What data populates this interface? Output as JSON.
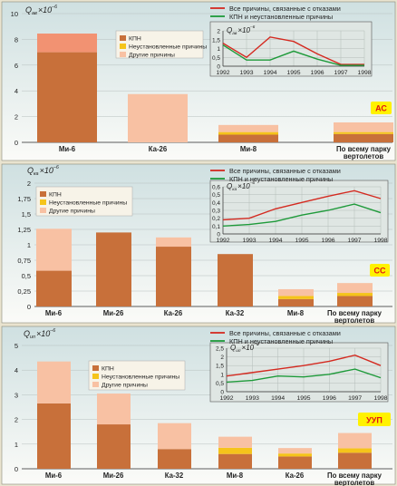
{
  "chart_data": [
    {
      "type": "bar",
      "stacked": true,
      "y_label": {
        "main": "Q",
        "sub": "ав",
        "mult": "×10",
        "exp": "–6"
      },
      "ylim": [
        0,
        10
      ],
      "yticks": [
        0,
        2,
        4,
        6,
        8,
        10
      ],
      "ytick_labels": [
        "0",
        "2",
        "4",
        "6",
        "8",
        "10"
      ],
      "categories": [
        {
          "label": [
            "Ми-6"
          ],
          "segments": [
            7.0,
            0,
            1.45
          ]
        },
        {
          "label": [
            "Ка-26"
          ],
          "segments": [
            0,
            0,
            3.75
          ]
        },
        {
          "label": [
            "Ми-8"
          ],
          "segments": [
            0.6,
            0.2,
            0.55
          ]
        },
        {
          "label": [
            "По всему парку",
            "вертолетов"
          ],
          "segments": [
            0.65,
            0.15,
            0.75
          ]
        }
      ],
      "segment_names": [
        "КПН",
        "Неустановленные причины",
        "Другие причины"
      ],
      "badge": "АС",
      "inset": {
        "y_label": {
          "main": "Q",
          "sub": "ав",
          "mult": "×10",
          "exp": "–6"
        },
        "ylim": [
          0,
          2
        ],
        "yticks": [
          0,
          0.5,
          1,
          1.5,
          2
        ],
        "ytick_labels": [
          "0",
          "0,5",
          "1",
          "1,5",
          "2"
        ],
        "x": [
          "1992",
          "1993",
          "1994",
          "1995",
          "1996",
          "1997",
          "1998"
        ],
        "series": [
          {
            "name": "Все причины, связанные с отказами",
            "color": "#d42a20",
            "values": [
              1.3,
              0.5,
              1.65,
              1.4,
              0.7,
              0.1,
              0.1
            ]
          },
          {
            "name": "КПН и неустановленные причины",
            "color": "#1e9a3a",
            "values": [
              1.2,
              0.35,
              0.35,
              0.85,
              0.4,
              0.05,
              0.05
            ]
          }
        ]
      }
    },
    {
      "type": "bar",
      "stacked": true,
      "y_label": {
        "main": "Q",
        "sub": "ка",
        "mult": "×10",
        "exp": "–6"
      },
      "ylim": [
        0,
        2
      ],
      "yticks": [
        0,
        0.25,
        0.5,
        0.75,
        1,
        1.25,
        1.5,
        1.75,
        2
      ],
      "ytick_labels": [
        "0",
        "0,25",
        "0,5",
        "0,75",
        "1",
        "1,25",
        "1,5",
        "1,75",
        "2"
      ],
      "categories": [
        {
          "label": [
            "Ми-6"
          ],
          "segments": [
            0.58,
            0,
            0.68
          ]
        },
        {
          "label": [
            "Ми-26"
          ],
          "segments": [
            1.2,
            0,
            0
          ]
        },
        {
          "label": [
            "Ка-26"
          ],
          "segments": [
            0.97,
            0,
            0.15
          ]
        },
        {
          "label": [
            "Ка-32"
          ],
          "segments": [
            0.85,
            0,
            0
          ]
        },
        {
          "label": [
            "Ми-8"
          ],
          "segments": [
            0.12,
            0.05,
            0.11
          ]
        },
        {
          "label": [
            "По всему парку",
            "вертолетов"
          ],
          "segments": [
            0.17,
            0.05,
            0.16
          ]
        }
      ],
      "segment_names": [
        "КПН",
        "Неустановленные причины",
        "Другие причины"
      ],
      "badge": "СС",
      "inset": {
        "y_label": {
          "main": "Q",
          "sub": "ка",
          "mult": "×10",
          "exp": "–6"
        },
        "ylim": [
          0,
          0.6
        ],
        "yticks": [
          0,
          0.1,
          0.2,
          0.3,
          0.4,
          0.5,
          0.6
        ],
        "ytick_labels": [
          "0",
          "0,1",
          "0,2",
          "0,3",
          "0,4",
          "0,5",
          "0,6"
        ],
        "x": [
          "1992",
          "1993",
          "1994",
          "1995",
          "1996",
          "1997",
          "1998"
        ],
        "series": [
          {
            "name": "Все причины, связанные с отказами",
            "color": "#d42a20",
            "values": [
              0.18,
              0.2,
              0.32,
              0.4,
              0.48,
              0.55,
              0.45
            ]
          },
          {
            "name": "КПН и неустановленные причины",
            "color": "#1e9a3a",
            "values": [
              0.1,
              0.12,
              0.16,
              0.24,
              0.3,
              0.38,
              0.27
            ]
          }
        ]
      }
    },
    {
      "type": "bar",
      "stacked": true,
      "y_label": {
        "main": "Q",
        "sub": "ип",
        "mult": "×10",
        "exp": "–6"
      },
      "ylim": [
        0,
        5
      ],
      "yticks": [
        0,
        1,
        2,
        3,
        4,
        5
      ],
      "ytick_labels": [
        "0",
        "1",
        "2",
        "3",
        "4",
        "5"
      ],
      "categories": [
        {
          "label": [
            "Ми-6"
          ],
          "segments": [
            2.65,
            0,
            1.7
          ]
        },
        {
          "label": [
            "Ми-26"
          ],
          "segments": [
            1.8,
            0,
            1.25
          ]
        },
        {
          "label": [
            "Ка-32"
          ],
          "segments": [
            0.8,
            0,
            1.05
          ]
        },
        {
          "label": [
            "Ми-8"
          ],
          "segments": [
            0.6,
            0.25,
            0.45
          ]
        },
        {
          "label": [
            "Ка-26"
          ],
          "segments": [
            0.5,
            0.12,
            0.22
          ]
        },
        {
          "label": [
            "По всему парку",
            "вертолетов"
          ],
          "segments": [
            0.65,
            0.18,
            0.62
          ]
        }
      ],
      "segment_names": [
        "КПН",
        "Неустановленные причины",
        "Другие причины"
      ],
      "badge": "УУП",
      "inset": {
        "y_label": {
          "main": "Q",
          "sub": "ип",
          "mult": "×10",
          "exp": "–6"
        },
        "ylim": [
          0,
          2.5
        ],
        "yticks": [
          0,
          0.5,
          1,
          1.5,
          2,
          2.5
        ],
        "ytick_labels": [
          "0",
          "0,5",
          "1",
          "1,5",
          "2",
          "2,5"
        ],
        "x": [
          "1992",
          "1993",
          "1994",
          "1995",
          "1996",
          "1997",
          "1998"
        ],
        "series": [
          {
            "name": "Все причины, связанные с отказами",
            "color": "#d42a20",
            "values": [
              0.9,
              1.1,
              1.3,
              1.5,
              1.75,
              2.1,
              1.5
            ]
          },
          {
            "name": "КПН и неустановленные причины",
            "color": "#1e9a3a",
            "values": [
              0.55,
              0.65,
              0.9,
              0.85,
              1.0,
              1.3,
              0.8
            ]
          }
        ]
      }
    }
  ],
  "colors": {
    "kpn": "#c8703a",
    "unknown": "#f5c41a",
    "other": "#f8c1a3",
    "ac_top": "#f29272",
    "badge_bg": "#fff200",
    "badge_text": "#e01515",
    "panel_top": "#cfe0e1",
    "panel_bottom": "#fbfbf8",
    "inset_bg": "#dfe6e3"
  }
}
